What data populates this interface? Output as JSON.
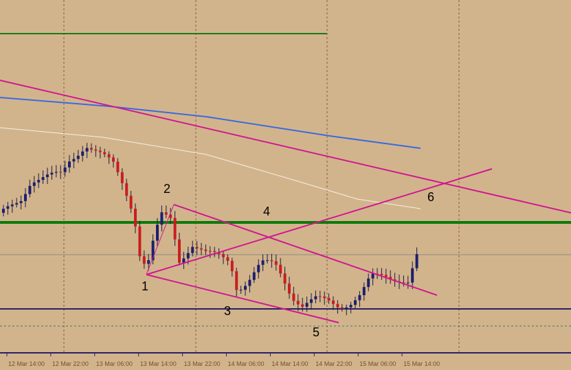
{
  "time_axis": {
    "labels": [
      "12 Mar 14:00",
      "12 Mar 22:00",
      "13 Mar 06:00",
      "13 Mar 14:00",
      "13 Mar 22:00",
      "14 Mar 06:00",
      "14 Mar 14:00",
      "14 Mar 22:00",
      "15 Mar 06:00",
      "15 Mar 14:00"
    ]
  },
  "wave_labels": [
    "1",
    "2",
    "3",
    "4",
    "5",
    "6"
  ]
}
